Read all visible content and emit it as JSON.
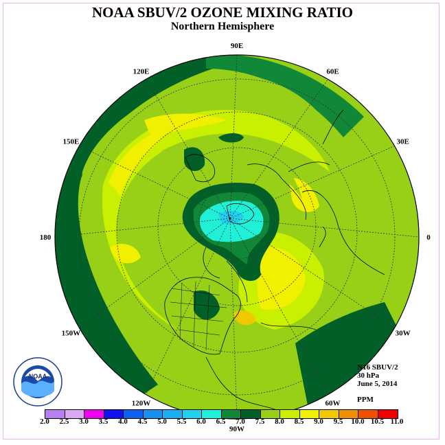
{
  "header": {
    "title": "NOAA SBUV/2 OZONE MIXING RATIO",
    "subtitle": "Northern Hemisphere"
  },
  "map": {
    "projection": "north polar stereographic",
    "longitude_labels": [
      "90E",
      "60E",
      "30E",
      "0",
      "30W",
      "60W",
      "90W",
      "120W",
      "150W",
      "180",
      "150E",
      "120E"
    ]
  },
  "info": {
    "instrument": "N16 SBUV/2",
    "level": "30 hPa",
    "date": "June 5, 2014",
    "units": "PPM"
  },
  "legend": {
    "ticks": [
      "2.0",
      "2.5",
      "3.0",
      "3.5",
      "4.0",
      "4.5",
      "5.0",
      "5.5",
      "6.0",
      "6.5",
      "7.0",
      "7.5",
      "8.0",
      "8.5",
      "9.0",
      "9.5",
      "10.0",
      "10.5",
      "11.0"
    ],
    "colors": [
      "#b680f0",
      "#d9a8f0",
      "#f000f0",
      "#1010f0",
      "#1060f0",
      "#1890f0",
      "#18b0f0",
      "#20d0f0",
      "#20f0d8",
      "#108838",
      "#006028",
      "#98d018",
      "#c8f000",
      "#f0f000",
      "#f0c800",
      "#f09000",
      "#f05000",
      "#f00000",
      "#8a5030"
    ]
  },
  "logo": {
    "text": "NOAA",
    "ring_text": "NATIONAL OCEANIC AND ATMOSPHERIC ADMINISTRATION · U.S. DEPARTMENT OF COMMERCE"
  }
}
